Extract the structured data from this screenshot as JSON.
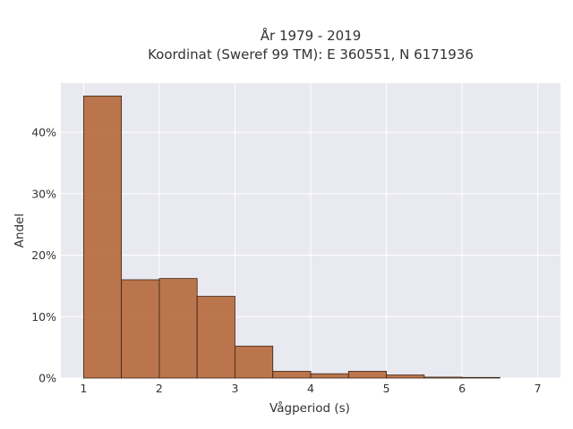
{
  "chart_data": {
    "type": "bar",
    "title_line1": "År 1979 - 2019",
    "title_line2": "Koordinat (Sweref 99 TM): E 360551, N 6171936",
    "xlabel": "Vågperiod (s)",
    "ylabel": "Andel",
    "xlim": [
      0.7,
      7.3
    ],
    "ylim": [
      0,
      48
    ],
    "x_ticks": [
      1,
      2,
      3,
      4,
      5,
      6,
      7
    ],
    "y_ticks": [
      0,
      10,
      20,
      30,
      40
    ],
    "y_tick_labels": [
      "0%",
      "10%",
      "20%",
      "30%",
      "40%"
    ],
    "bin_width": 0.5,
    "bins": [
      1.0,
      1.5,
      2.0,
      2.5,
      3.0,
      3.5,
      4.0,
      4.5,
      5.0,
      5.5,
      6.0
    ],
    "values": [
      45.9,
      16.0,
      16.2,
      13.3,
      5.2,
      1.1,
      0.7,
      1.1,
      0.5,
      0.15,
      0.1
    ],
    "grid": true,
    "bar_color": "#b5683a",
    "bar_edge_color": "#3d2414",
    "plot_background": "#e9e9f1"
  }
}
